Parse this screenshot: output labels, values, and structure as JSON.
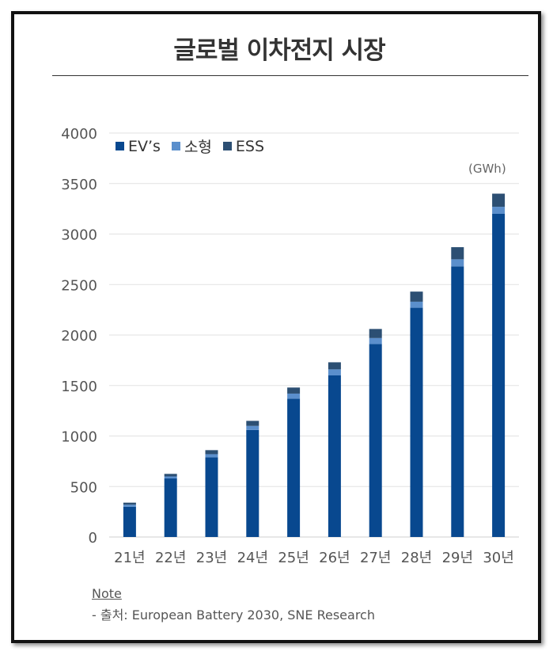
{
  "title": "글로벌 이차전지 시장",
  "unit": "(GWh)",
  "note_label": "Note",
  "source": "- 출처: European Battery 2030, SNE Research",
  "colors": {
    "ev": "#08488f",
    "small": "#5b8fcc",
    "ess": "#2c4f73",
    "grid": "#e2e2e2",
    "text": "#555555"
  },
  "chart_data": {
    "type": "bar",
    "stacked": true,
    "categories": [
      "21년",
      "22년",
      "23년",
      "24년",
      "25년",
      "26년",
      "27년",
      "28년",
      "29년",
      "30년"
    ],
    "series": [
      {
        "name": "EV’s",
        "values": [
          300,
          580,
          790,
          1060,
          1370,
          1600,
          1910,
          2270,
          2680,
          3200
        ]
      },
      {
        "name": "소형",
        "values": [
          20,
          20,
          30,
          40,
          50,
          60,
          60,
          60,
          70,
          70
        ]
      },
      {
        "name": "ESS",
        "values": [
          20,
          25,
          40,
          50,
          60,
          70,
          90,
          100,
          120,
          130
        ]
      }
    ],
    "ylim": [
      0,
      4000
    ],
    "yticks": [
      0,
      500,
      1000,
      1500,
      2000,
      2500,
      3000,
      3500,
      4000
    ],
    "grid": true,
    "legend_position": "top-left"
  }
}
